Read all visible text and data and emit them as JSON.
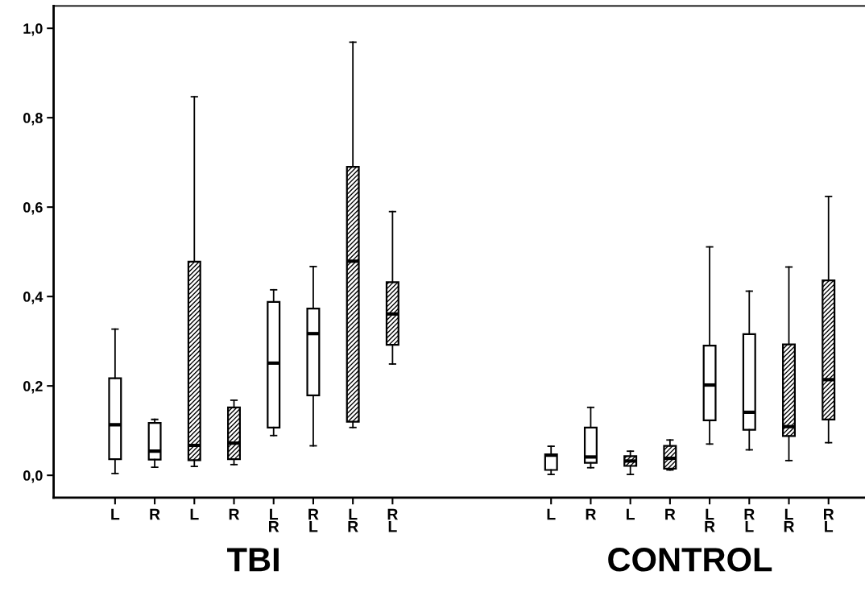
{
  "chart_data": {
    "type": "box",
    "categories": [
      "L",
      "R",
      "L",
      "R",
      "L\nR",
      "R\nL",
      "L\nR",
      "R\nL",
      null,
      null,
      null,
      "L",
      "R",
      "L",
      "R",
      "L\nR",
      "R\nL",
      "L\nR",
      "R\nL"
    ],
    "series": [
      {
        "color": "#ffffff",
        "boxes": [
          {
            "low": 0.004,
            "q1": 0.036,
            "median": 0.113,
            "q3": 0.217,
            "high": 0.327
          },
          {
            "low": 0.018,
            "q1": 0.035,
            "median": 0.054,
            "q3": 0.117,
            "high": 0.125
          },
          null,
          null,
          {
            "low": 0.089,
            "q1": 0.107,
            "median": 0.251,
            "q3": 0.388,
            "high": 0.415
          },
          {
            "low": 0.066,
            "q1": 0.179,
            "median": 0.317,
            "q3": 0.373,
            "high": 0.467
          },
          null,
          null,
          null,
          null,
          null,
          {
            "low": 0.002,
            "q1": 0.012,
            "median": 0.045,
            "q3": 0.047,
            "high": 0.065
          },
          {
            "low": 0.017,
            "q1": 0.028,
            "median": 0.041,
            "q3": 0.107,
            "high": 0.152
          },
          null,
          null,
          {
            "low": 0.07,
            "q1": 0.123,
            "median": 0.202,
            "q3": 0.29,
            "high": 0.511
          },
          {
            "low": 0.057,
            "q1": 0.102,
            "median": 0.141,
            "q3": 0.316,
            "high": 0.412
          },
          null,
          null
        ]
      },
      {
        "color": "#000000",
        "boxes": [
          null,
          null,
          {
            "low": 0.02,
            "q1": 0.034,
            "median": 0.067,
            "q3": 0.478,
            "high": 0.847
          },
          {
            "low": 0.024,
            "q1": 0.036,
            "median": 0.072,
            "q3": 0.152,
            "high": 0.168
          },
          null,
          null,
          {
            "low": 0.107,
            "q1": 0.12,
            "median": 0.479,
            "q3": 0.69,
            "high": 0.969
          },
          {
            "low": 0.249,
            "q1": 0.292,
            "median": 0.361,
            "q3": 0.432,
            "high": 0.59
          },
          null,
          null,
          null,
          null,
          null,
          {
            "low": 0.002,
            "q1": 0.021,
            "median": 0.032,
            "q3": 0.043,
            "high": 0.054
          },
          {
            "low": 0.012,
            "q1": 0.015,
            "median": 0.038,
            "q3": 0.066,
            "high": 0.079
          },
          null,
          null,
          {
            "low": 0.033,
            "q1": 0.088,
            "median": 0.109,
            "q3": 0.293,
            "high": 0.466
          },
          {
            "low": 0.073,
            "q1": 0.125,
            "median": 0.214,
            "q3": 0.436,
            "high": 0.624
          }
        ]
      }
    ],
    "annotations": [
      "TBI",
      "CONTROL"
    ],
    "ylim": [
      -0.05,
      1.05
    ],
    "yticks": [
      {
        "value": 0,
        "label": "0,0"
      },
      {
        "value": 0.2,
        "label": "0,2"
      },
      {
        "value": 0.4,
        "label": "0,4"
      },
      {
        "value": 0.6,
        "label": "0,6"
      },
      {
        "value": 0.8,
        "label": "0,8"
      },
      {
        "value": 1.0,
        "label": "1,0"
      }
    ],
    "grid": false
  }
}
